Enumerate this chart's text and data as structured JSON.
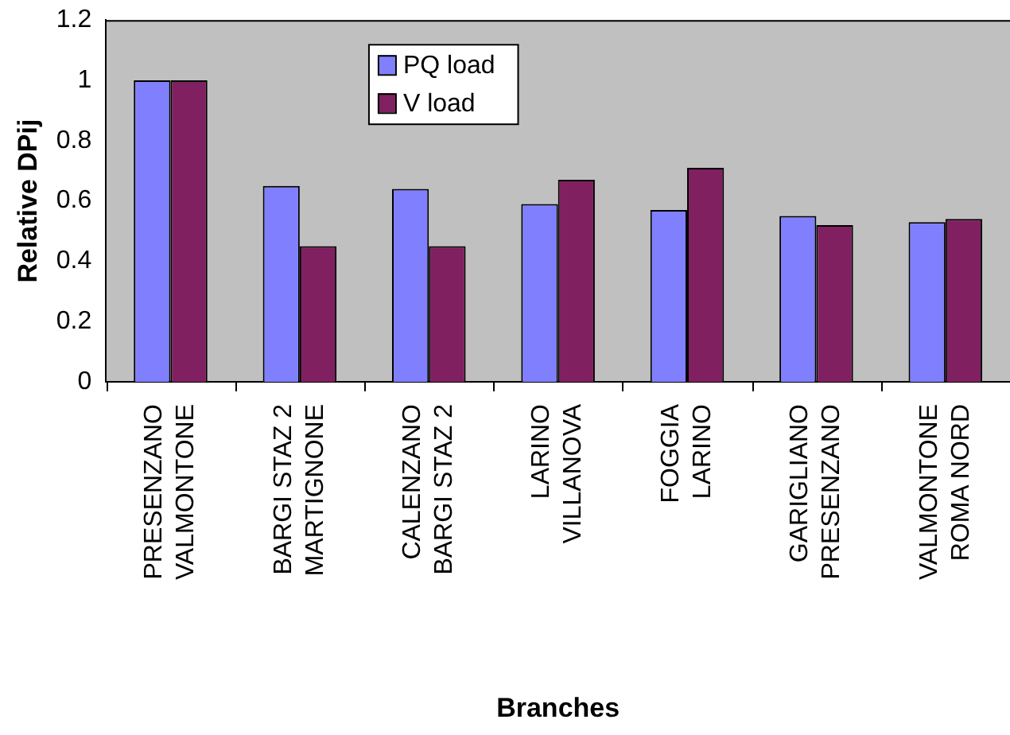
{
  "chart_data": {
    "type": "bar",
    "xlabel": "Branches",
    "ylabel": "Relative DPij",
    "categories": [
      "PRESENZANO\nVALMONTONE",
      "BARGI STAZ 2\nMARTIGNONE",
      "CALENZANO\nBARGI STAZ 2",
      "LARINO\nVILLANOVA",
      "FOGGIA\nLARINO",
      "GARIGLIANO\nPRESENZANO",
      "VALMONTONE\nROMA NORD"
    ],
    "series": [
      {
        "name": "PQ load",
        "color": "#8080ff",
        "values": [
          1,
          0.65,
          0.64,
          0.59,
          0.57,
          0.55,
          0.53
        ]
      },
      {
        "name": "V load",
        "color": "#802060",
        "values": [
          1,
          0.45,
          0.45,
          0.67,
          0.71,
          0.52,
          0.54
        ]
      }
    ],
    "ylim": [
      0,
      1.2
    ],
    "yticks": [
      0,
      0.2,
      0.4,
      0.6,
      0.8,
      1,
      1.2
    ],
    "grid": false,
    "legend": "top left"
  }
}
